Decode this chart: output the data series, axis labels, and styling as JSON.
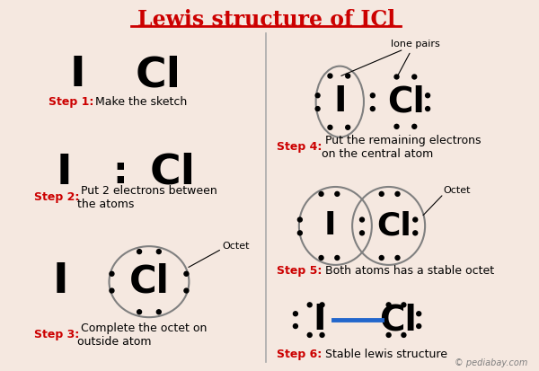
{
  "title": "Lewis structure of ICl",
  "bg_color": "#f5e8e0",
  "title_color": "#cc0000",
  "step_color": "#cc0000",
  "atom_color": "#000000",
  "dot_color": "#000000",
  "line_color": "#4444ff",
  "annotation_color": "#000000",
  "divider_color": "#aaaaaa",
  "step1_label": "Step 1:",
  "step1_text": " Make the sketch",
  "step2_label": "Step 2:",
  "step2_text": " Put 2 electrons between\nthe atoms",
  "step3_label": "Step 3:",
  "step3_text": " Complete the octet on\noutside atom",
  "step4_label": "Step 4:",
  "step4_text": " Put the remaining electrons\non the central atom",
  "step5_label": "Step 5:",
  "step5_text": " Both atoms has a stable octet",
  "step6_label": "Step 6:",
  "step6_text": " Stable lewis structure",
  "watermark": "© pediabay.com"
}
